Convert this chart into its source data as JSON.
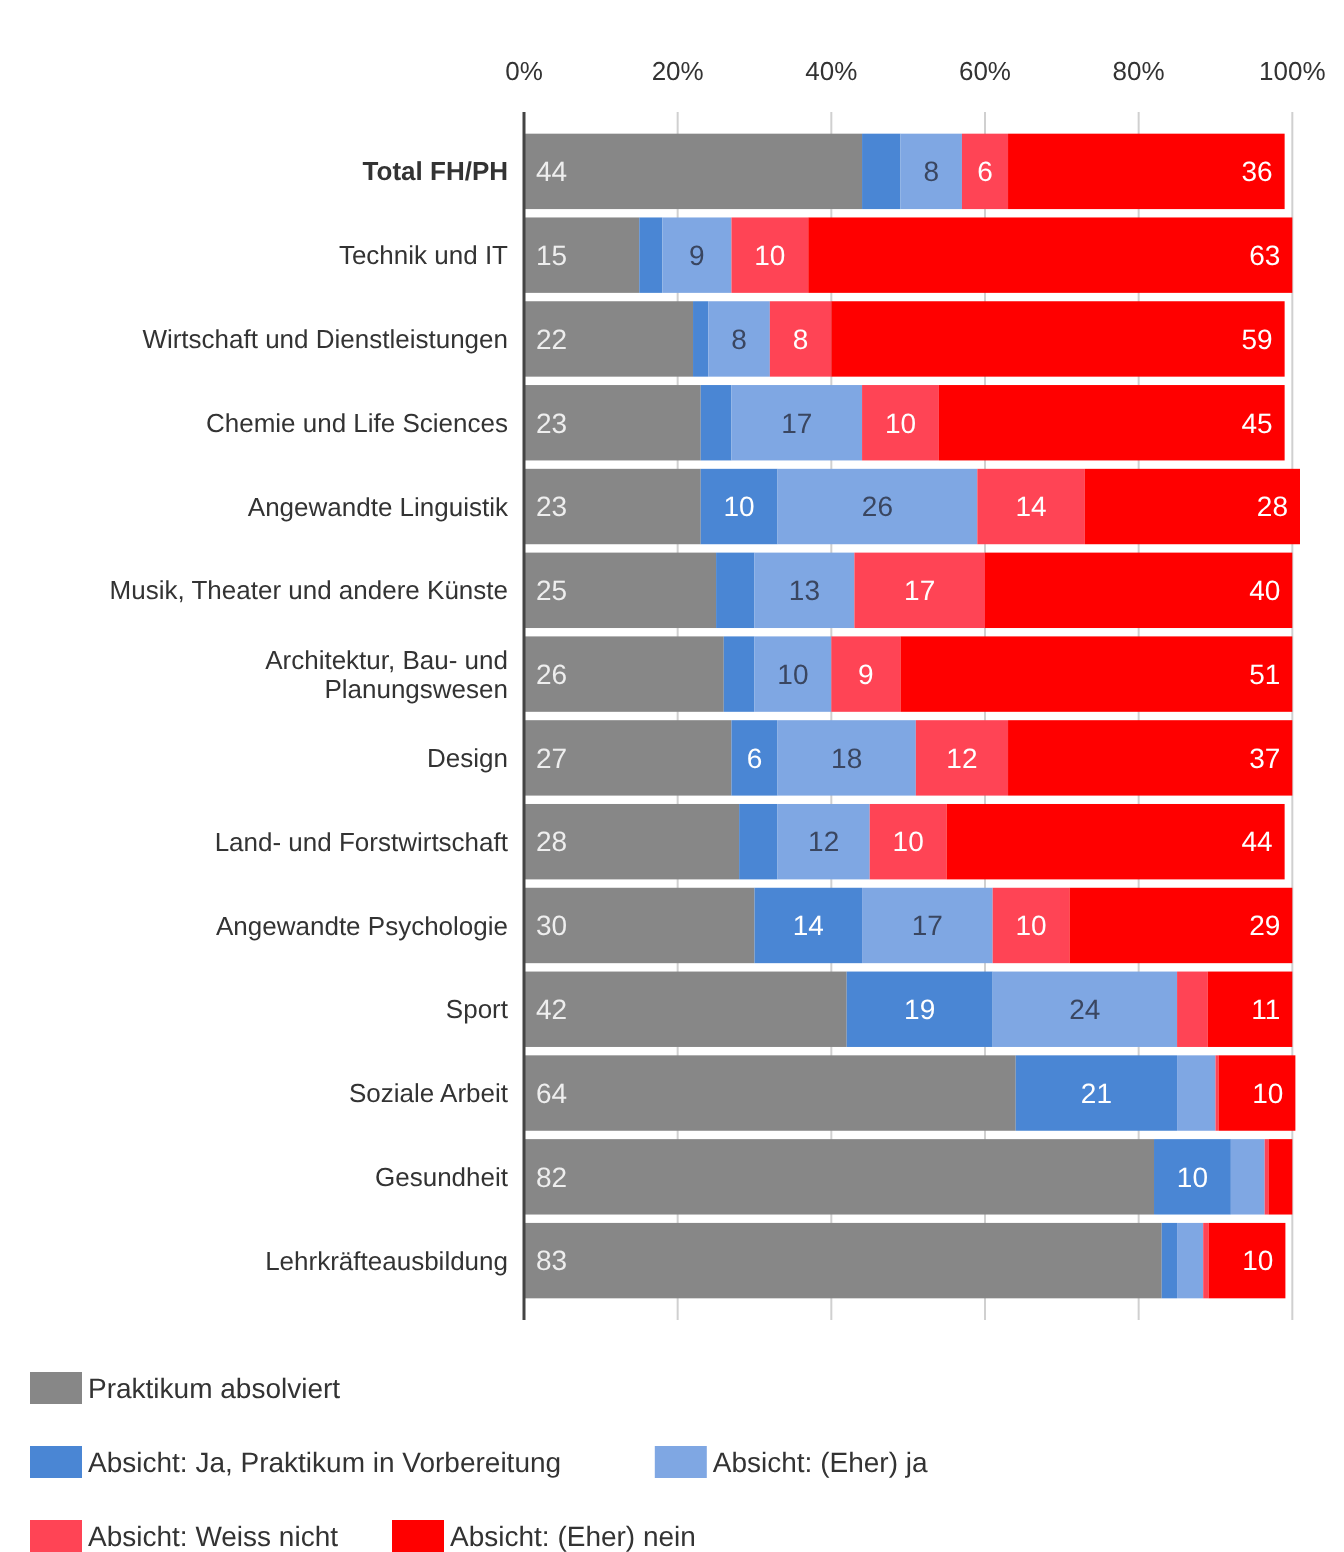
{
  "chart_data": {
    "type": "bar",
    "orientation": "horizontal",
    "stacked": true,
    "categories": [
      "Total FH/PH",
      "Technik und IT",
      "Wirtschaft und Dienstleistungen",
      "Chemie und Life Sciences",
      "Angewandte Linguistik",
      "Musik, Theater und andere Künste",
      "Architektur, Bau- und Planungswesen",
      "Design",
      "Land- und Forstwirtschaft",
      "Angewandte Psychologie",
      "Sport",
      "Soziale Arbeit",
      "Gesundheit",
      "Lehrkräfteausbildung"
    ],
    "xlim": [
      0,
      101
    ],
    "xticks": [
      {
        "value": 0,
        "label": "0%"
      },
      {
        "value": 20,
        "label": "20%"
      },
      {
        "value": 40,
        "label": "40%"
      },
      {
        "value": 60,
        "label": "60%"
      },
      {
        "value": 80,
        "label": "80%"
      },
      {
        "value": 100,
        "label": "100%"
      }
    ],
    "grid": "x",
    "legend": "bottom",
    "series": [
      {
        "name": "Praktikum absolviert",
        "color": "#878787",
        "values": [
          44,
          15,
          22,
          23,
          23,
          25,
          26,
          27,
          28,
          30,
          42,
          64,
          82,
          83
        ],
        "value_labels": [
          "44",
          "15",
          "22",
          "23",
          "23",
          "25",
          "26",
          "27",
          "28",
          "30",
          "42",
          "64",
          "82",
          "83"
        ]
      },
      {
        "name": "Absicht: Ja, Praktikum in Vorbereitung",
        "color": "#4a86d4",
        "values": [
          5,
          3,
          2,
          4,
          10,
          5,
          4,
          6,
          5,
          14,
          19,
          21,
          10,
          2
        ],
        "value_labels": [
          null,
          null,
          null,
          null,
          "10",
          null,
          null,
          "6",
          null,
          "14",
          "19",
          "21",
          "10",
          null
        ]
      },
      {
        "name": "Absicht: (Eher) ja",
        "color": "#7fa7e3",
        "values": [
          8,
          9,
          8,
          17,
          26,
          13,
          10,
          18,
          12,
          17,
          24,
          5,
          4.4,
          3.4
        ],
        "value_labels": [
          "8",
          "9",
          "8",
          "17",
          "26",
          "13",
          "10",
          "18",
          "12",
          "17",
          "24",
          null,
          null,
          null
        ]
      },
      {
        "name": "Absicht: Weiss nicht",
        "color": "#ff4455",
        "values": [
          6,
          10,
          8,
          10,
          14,
          17,
          9,
          12,
          10,
          10,
          4,
          0.4,
          0.5,
          0.7
        ],
        "value_labels": [
          "6",
          "10",
          "8",
          "10",
          "14",
          "17",
          "9",
          "12",
          "10",
          "10",
          null,
          null,
          null,
          null
        ]
      },
      {
        "name": "Absicht: (Eher) nein",
        "color": "#ff0000",
        "values": [
          36,
          63,
          59,
          45,
          28,
          40,
          51,
          37,
          44,
          29,
          11,
          10,
          3.1,
          10
        ],
        "value_labels": [
          "36",
          "63",
          "59",
          "45",
          "28",
          "40",
          "51",
          "37",
          "44",
          "29",
          "11",
          "10",
          null,
          "10"
        ]
      }
    ]
  }
}
